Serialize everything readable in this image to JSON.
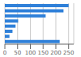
{
  "chart_data": {
    "type": "bar",
    "orientation": "horizontal",
    "categories": [
      null,
      null,
      null,
      null,
      null,
      null,
      null,
      null
    ],
    "values": [
      250,
      230,
      160,
      52,
      42,
      30,
      18,
      215
    ],
    "color": "#2f80d9",
    "xlim": [
      0,
      270
    ],
    "xticks": [
      0,
      50,
      100,
      150,
      200,
      250
    ],
    "grid": true,
    "tick_labels": "x"
  }
}
